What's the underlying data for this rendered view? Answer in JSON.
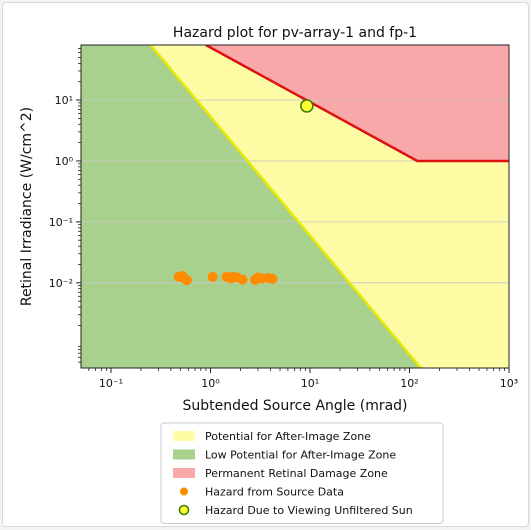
{
  "chart_data": {
    "type": "scatter",
    "title": "Hazard plot for pv-array-1 and fp-1",
    "xlabel": "Subtended Source Angle (mrad)",
    "ylabel": "Retinal Irradiance (W/cm^2)",
    "xscale": "log",
    "yscale": "log",
    "xlim": [
      0.05,
      1000
    ],
    "ylim": [
      0.0004,
      80
    ],
    "grid": "horizontal",
    "x_ticks": [
      {
        "value": 0.1,
        "label": "10⁻¹"
      },
      {
        "value": 1,
        "label": "10⁰"
      },
      {
        "value": 10,
        "label": "10¹"
      },
      {
        "value": 100,
        "label": "10²"
      },
      {
        "value": 1000,
        "label": "10³"
      }
    ],
    "y_ticks": [
      {
        "value": 0.01,
        "label": "10⁻²"
      },
      {
        "value": 0.1,
        "label": "10⁻¹"
      },
      {
        "value": 1,
        "label": "10⁰"
      },
      {
        "value": 10,
        "label": "10¹"
      }
    ],
    "zones": {
      "low_potential_boundary": [
        [
          0.25,
          80
        ],
        [
          130,
          0.0004
        ]
      ],
      "permanent_damage_boundary": [
        [
          0.9,
          80
        ],
        [
          120,
          1
        ],
        [
          1000,
          1
        ]
      ]
    },
    "series": [
      {
        "name": "Hazard from Source Data",
        "points": [
          [
            0.48,
            0.0125
          ],
          [
            0.52,
            0.013
          ],
          [
            0.55,
            0.0118
          ],
          [
            0.58,
            0.011
          ],
          [
            1.05,
            0.0125
          ],
          [
            1.45,
            0.0125
          ],
          [
            1.6,
            0.0118
          ],
          [
            1.7,
            0.0126
          ],
          [
            1.85,
            0.0122
          ],
          [
            2.1,
            0.0113
          ],
          [
            2.8,
            0.0112
          ],
          [
            3.0,
            0.0122
          ],
          [
            3.3,
            0.0118
          ],
          [
            3.8,
            0.012
          ],
          [
            4.2,
            0.0116
          ]
        ]
      },
      {
        "name": "Hazard Due to Viewing Unfiltered Sun",
        "points": [
          [
            9.3,
            8.0
          ]
        ]
      }
    ],
    "legend": {
      "placement": "below",
      "entries": [
        {
          "label": "Potential for After-Image Zone",
          "color": "#fdfca4",
          "marker": "patch"
        },
        {
          "label": "Low Potential for After-Image Zone",
          "color": "#a9d18e",
          "marker": "patch"
        },
        {
          "label": "Permanent Retinal Damage Zone",
          "color": "#f8a8a8",
          "marker": "patch"
        },
        {
          "label": "Hazard from Source Data",
          "color": "#ff8c00",
          "marker": "dot"
        },
        {
          "label": "Hazard Due to Viewing Unfiltered Sun",
          "color": "#ffff33",
          "marker": "ring"
        }
      ]
    },
    "colors": {
      "yellow_zone": "#fdfca4",
      "green_zone": "#a9d18e",
      "red_zone": "#f8a8a8",
      "yellow_line": "#e8e800",
      "red_line": "#dd1111",
      "source_points": "#ff8c00",
      "sun_fill": "#ffff33",
      "sun_edge": "#3a7a00"
    }
  }
}
